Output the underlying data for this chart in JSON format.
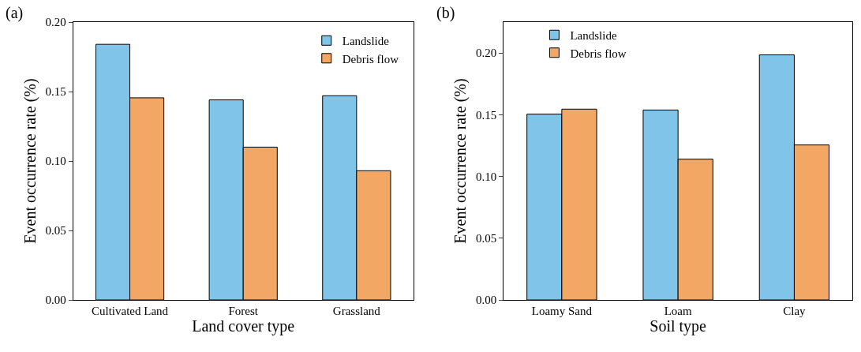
{
  "chart_data": [
    {
      "type": "bar",
      "title": "(a)",
      "xlabel": "Land cover type",
      "ylabel": "Event occurrence rate (%)",
      "categories": [
        "Cultivated Land",
        "Forest",
        "Grassland"
      ],
      "series": [
        {
          "name": "Landslide",
          "color": "#80c4e9",
          "values": [
            0.184,
            0.144,
            0.147
          ]
        },
        {
          "name": "Debris flow",
          "color": "#f2a765",
          "values": [
            0.1455,
            0.11,
            0.093
          ]
        }
      ],
      "ylim": [
        0,
        0.2
      ],
      "yticks": [
        {
          "value": 0,
          "label": "0.00"
        },
        {
          "value": 0.05,
          "label": "0.05"
        },
        {
          "value": 0.1,
          "label": "0.10"
        },
        {
          "value": 0.15,
          "label": "0.15"
        },
        {
          "value": 0.2,
          "label": "0.20"
        }
      ],
      "grid": false,
      "legend": "top right"
    },
    {
      "type": "bar",
      "title": "(b)",
      "xlabel": "Soil type",
      "ylabel": "Event occurrence rate (%)",
      "categories": [
        "Loamy Sand",
        "Loam",
        "Clay"
      ],
      "series": [
        {
          "name": "Landslide",
          "color": "#80c4e9",
          "values": [
            0.1505,
            0.1538,
            0.1985
          ]
        },
        {
          "name": "Debris flow",
          "color": "#f2a765",
          "values": [
            0.1545,
            0.114,
            0.1255
          ]
        }
      ],
      "ylim": [
        0,
        0.225
      ],
      "yticks": [
        {
          "value": 0,
          "label": "0.00"
        },
        {
          "value": 0.05,
          "label": "0.05"
        },
        {
          "value": 0.1,
          "label": "0.10"
        },
        {
          "value": 0.15,
          "label": "0.15"
        },
        {
          "value": 0.2,
          "label": "0.20"
        }
      ],
      "grid": false,
      "legend": "top left"
    }
  ]
}
